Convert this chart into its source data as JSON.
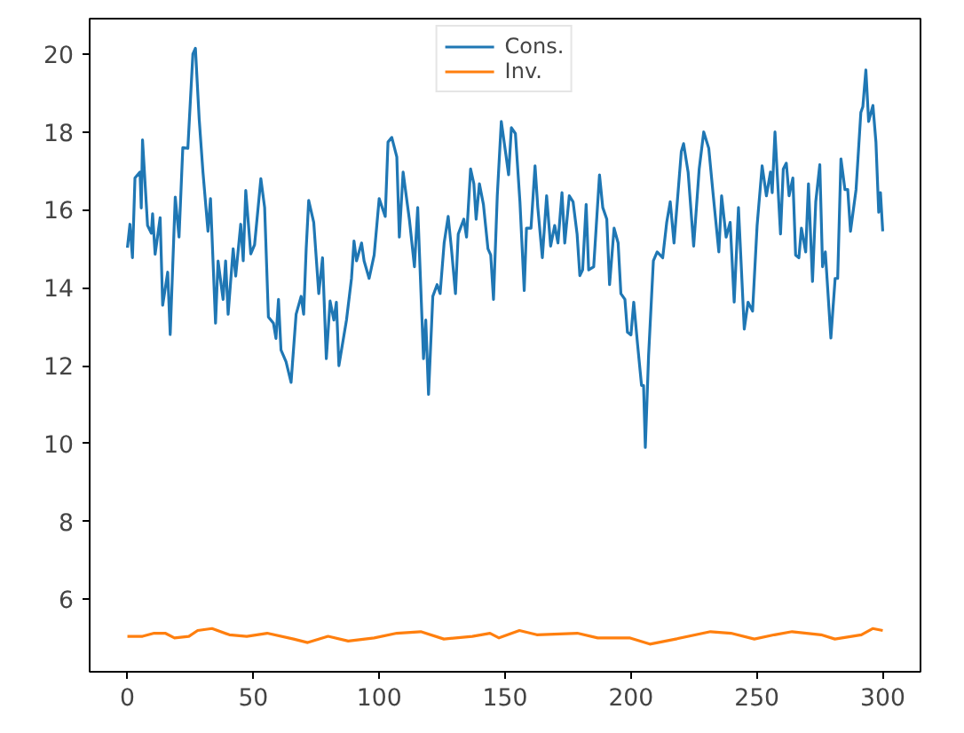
{
  "chart_data": {
    "type": "line",
    "xlim": [
      -15,
      315
    ],
    "ylim": [
      4.14,
      20.91
    ],
    "xticks": [
      0,
      50,
      100,
      150,
      200,
      250,
      300
    ],
    "yticks": [
      6,
      8,
      10,
      12,
      14,
      16,
      18,
      20
    ],
    "grid": false,
    "legend": "top",
    "marker": "none",
    "line_style": "solid",
    "series": [
      {
        "name": "Cons.",
        "color": "#1f77b4",
        "x": [
          0,
          1,
          2,
          3,
          5,
          5.5,
          6,
          8,
          9.5,
          10,
          11,
          13,
          14,
          16,
          17,
          19,
          20.5,
          22,
          24,
          26,
          27,
          28.5,
          30,
          32,
          33,
          35,
          36,
          38,
          39,
          40,
          42,
          43,
          45,
          46,
          47,
          49,
          50.5,
          53,
          54.5,
          56,
          58,
          59,
          60,
          61,
          63,
          65,
          67,
          69,
          70,
          71,
          72,
          74,
          76,
          77.5,
          79,
          80.5,
          82,
          83,
          84,
          87,
          89,
          90,
          91,
          93,
          94,
          96,
          98,
          100,
          102.4,
          103.5,
          105,
          107,
          108,
          109.5,
          112,
          114,
          115.3,
          117.6,
          118.5,
          119.6,
          121.3,
          123,
          124.2,
          125.8,
          127.4,
          128.7,
          130.3,
          131.4,
          133.6,
          134.7,
          136.3,
          137.6,
          138.5,
          139.8,
          141.4,
          143.2,
          144.3,
          145.4,
          146.9,
          148.5,
          150.3,
          151.4,
          152.5,
          154.1,
          155.9,
          157.6,
          158.5,
          160.3,
          161.9,
          163,
          164.8,
          166.5,
          168.1,
          169.7,
          171,
          172.6,
          173.7,
          175.5,
          177,
          178.6,
          179.7,
          180.8,
          182.2,
          183.2,
          185.2,
          187.5,
          188.8,
          190.4,
          191.5,
          193.3,
          194.9,
          196,
          197.6,
          198.6,
          200,
          201.1,
          202.6,
          204.2,
          205,
          205.7,
          207,
          208.9,
          210.4,
          212.6,
          214.2,
          215.6,
          217.1,
          220,
          220.9,
          222.7,
          224.9,
          227.1,
          228.9,
          230.9,
          232.7,
          234.9,
          236,
          237.8,
          239.4,
          241,
          242.7,
          245,
          246.5,
          248.3,
          250.1,
          252.1,
          253.8,
          255.4,
          256.1,
          257.2,
          259.4,
          260.5,
          261.7,
          262.8,
          264.3,
          265.4,
          266.7,
          267.7,
          269.4,
          270.5,
          272.1,
          273.4,
          275,
          276.1,
          277.2,
          279.4,
          281.1,
          282.1,
          283.4,
          285,
          286.1,
          287.2,
          289.4,
          291.3,
          292.1,
          293.3,
          294.4,
          296.1,
          297.3,
          298.4,
          299.1,
          300
        ],
        "values": [
          15.03,
          15.63,
          14.77,
          16.82,
          16.97,
          16.05,
          17.8,
          15.6,
          15.4,
          15.9,
          14.86,
          15.8,
          13.55,
          14.4,
          12.8,
          16.33,
          15.3,
          17.6,
          17.58,
          20.0,
          20.15,
          18.34,
          16.97,
          15.45,
          16.29,
          13.09,
          14.69,
          13.7,
          14.69,
          13.32,
          15.0,
          14.3,
          15.63,
          14.69,
          16.5,
          14.87,
          15.1,
          16.8,
          16.06,
          13.25,
          13.09,
          12.7,
          13.7,
          12.4,
          12.1,
          11.57,
          13.32,
          13.78,
          13.32,
          15.0,
          16.24,
          15.68,
          13.85,
          14.77,
          12.18,
          13.66,
          13.17,
          13.63,
          12.0,
          13.17,
          14.24,
          15.2,
          14.69,
          15.15,
          14.69,
          14.24,
          14.84,
          16.29,
          15.83,
          17.74,
          17.86,
          17.36,
          15.3,
          16.97,
          15.75,
          14.54,
          16.06,
          12.18,
          13.17,
          11.26,
          13.78,
          14.08,
          13.85,
          15.15,
          15.83,
          15.0,
          13.85,
          15.38,
          15.76,
          15.3,
          17.05,
          16.67,
          15.76,
          16.67,
          16.14,
          15.0,
          14.84,
          13.7,
          16.36,
          18.27,
          17.43,
          16.9,
          18.11,
          17.96,
          16.21,
          13.93,
          15.53,
          15.53,
          17.13,
          16.06,
          14.77,
          16.36,
          15.07,
          15.6,
          15.15,
          16.44,
          15.15,
          16.36,
          16.21,
          15.38,
          14.31,
          14.46,
          16.14,
          14.46,
          14.54,
          16.9,
          16.06,
          15.76,
          14.08,
          15.53,
          15.15,
          13.85,
          13.7,
          12.86,
          12.79,
          13.63,
          12.56,
          11.49,
          11.49,
          9.9,
          12.26,
          14.69,
          14.92,
          14.77,
          15.68,
          16.21,
          15.15,
          17.5,
          17.7,
          16.97,
          15.07,
          17.05,
          18.0,
          17.58,
          16.36,
          14.92,
          16.36,
          15.3,
          15.68,
          13.63,
          16.06,
          12.94,
          13.63,
          13.4,
          15.6,
          17.13,
          16.36,
          16.97,
          16.44,
          18.0,
          15.38,
          17.05,
          17.2,
          16.36,
          16.82,
          14.84,
          14.77,
          15.53,
          14.92,
          16.67,
          14.16,
          16.21,
          17.16,
          14.54,
          14.92,
          12.71,
          14.24,
          14.24,
          17.31,
          16.52,
          16.52,
          15.45,
          16.52,
          18.5,
          18.65,
          19.59,
          18.27,
          18.68,
          17.74,
          15.94,
          16.44,
          15.45
        ]
      },
      {
        "name": "Inv.",
        "color": "#ff7f0e",
        "x": [
          0,
          6,
          10.6,
          15,
          18.7,
          24.4,
          27.9,
          33.6,
          40.5,
          47.4,
          55.5,
          66,
          71.6,
          79.7,
          87.7,
          98,
          107,
          116.5,
          125.7,
          137,
          144,
          147.6,
          155.7,
          162.6,
          178.7,
          186.8,
          199.4,
          207.5,
          217.8,
          231.6,
          239.7,
          249,
          257,
          264,
          275.5,
          281,
          291.5,
          296,
          300
        ],
        "values": [
          5.05,
          5.05,
          5.13,
          5.13,
          5.01,
          5.05,
          5.2,
          5.25,
          5.09,
          5.05,
          5.13,
          4.98,
          4.89,
          5.05,
          4.93,
          5.01,
          5.13,
          5.17,
          4.98,
          5.05,
          5.13,
          5.01,
          5.2,
          5.09,
          5.13,
          5.01,
          5.01,
          4.85,
          4.98,
          5.17,
          5.13,
          4.98,
          5.09,
          5.17,
          5.09,
          4.98,
          5.09,
          5.25,
          5.2
        ]
      }
    ]
  }
}
